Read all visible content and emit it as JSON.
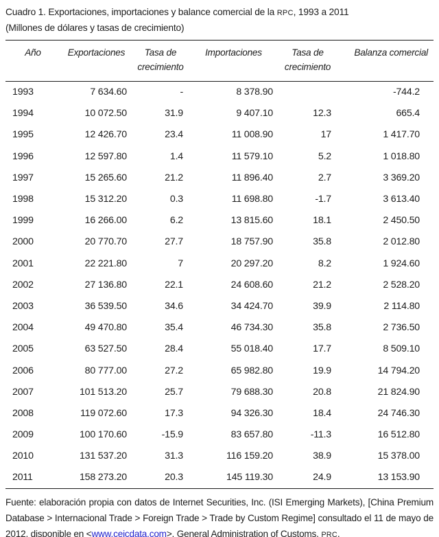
{
  "colors": {
    "text": "#1c1c1c",
    "rule": "#1a1a1a",
    "link": "#2222cc",
    "background": "#ffffff"
  },
  "title": {
    "segments": [
      {
        "text": "Cuadro 1. Exportaciones, importaciones y balance comercial de la ",
        "style": "plain",
        "name": "title-text"
      },
      {
        "text": "RPC",
        "style": "smallcaps",
        "name": "title-acronym"
      },
      {
        "text": ", 1993 a 2011",
        "style": "plain",
        "name": "title-text"
      }
    ]
  },
  "chart_data": {
    "type": "table",
    "title": "Cuadro 1. Exportaciones, importaciones y balance comercial de la RPC, 1993 a 2011",
    "subtitle": "(Millones de dólares y tasas de crecimiento)",
    "columns": [
      "Año",
      "Exportaciones",
      "Tasa de crecimiento",
      "Importaciones",
      "Tasa de crecimiento",
      "Balanza comercial"
    ],
    "rows": [
      [
        "1993",
        "7 634.60",
        "-",
        "8 378.90",
        "",
        "-744.2"
      ],
      [
        "1994",
        "10 072.50",
        "31.9",
        "9 407.10",
        "12.3",
        "665.4"
      ],
      [
        "1995",
        "12 426.70",
        "23.4",
        "11 008.90",
        "17",
        "1 417.70"
      ],
      [
        "1996",
        "12 597.80",
        "1.4",
        "11 579.10",
        "5.2",
        "1 018.80"
      ],
      [
        "1997",
        "15 265.60",
        "21.2",
        "11 896.40",
        "2.7",
        "3 369.20"
      ],
      [
        "1998",
        "15 312.20",
        "0.3",
        "11 698.80",
        "-1.7",
        "3 613.40"
      ],
      [
        "1999",
        "16 266.00",
        "6.2",
        "13 815.60",
        "18.1",
        "2 450.50"
      ],
      [
        "2000",
        "20 770.70",
        "27.7",
        "18 757.90",
        "35.8",
        "2 012.80"
      ],
      [
        "2001",
        "22 221.80",
        "7",
        "20 297.20",
        "8.2",
        "1 924.60"
      ],
      [
        "2002",
        "27 136.80",
        "22.1",
        "24 608.60",
        "21.2",
        "2 528.20"
      ],
      [
        "2003",
        "36 539.50",
        "34.6",
        "34 424.70",
        "39.9",
        "2 114.80"
      ],
      [
        "2004",
        "49 470.80",
        "35.4",
        "46 734.30",
        "35.8",
        "2 736.50"
      ],
      [
        "2005",
        "63 527.50",
        "28.4",
        "55 018.40",
        "17.7",
        "8 509.10"
      ],
      [
        "2006",
        "80 777.00",
        "27.2",
        "65 982.80",
        "19.9",
        "14 794.20"
      ],
      [
        "2007",
        "101 513.20",
        "25.7",
        "79 688.30",
        "20.8",
        "21 824.90"
      ],
      [
        "2008",
        "119 072.60",
        "17.3",
        "94 326.30",
        "18.4",
        "24 746.30"
      ],
      [
        "2009",
        "100 170.60",
        "-15.9",
        "83 657.80",
        "-11.3",
        "16 512.80"
      ],
      [
        "2010",
        "131 537.20",
        "31.3",
        "116 159.20",
        "38.9",
        "15 378.00"
      ],
      [
        "2011",
        "158 273.20",
        "20.3",
        "145 119.30",
        "24.9",
        "13 153.90"
      ]
    ]
  },
  "footer": {
    "segments": [
      {
        "text": "Fuente: elaboración propia con datos de Internet Securities, Inc. (ISI Emerging Markets),  [China Premium Database > Internacional Trade > Foreign Trade > Trade by Custom Regime] consultado el 11 de mayo de 2012, disponible en <",
        "style": "plain",
        "name": "source-text"
      },
      {
        "text": "www.ceicdata.com",
        "style": "link",
        "name": "ceicdata-link"
      },
      {
        "text": ">. General Administration of Customs, ",
        "style": "plain",
        "name": "source-text"
      },
      {
        "text": "PRC",
        "style": "smallcaps",
        "name": "source-acronym"
      },
      {
        "text": ".",
        "style": "plain",
        "name": "source-text"
      }
    ]
  }
}
